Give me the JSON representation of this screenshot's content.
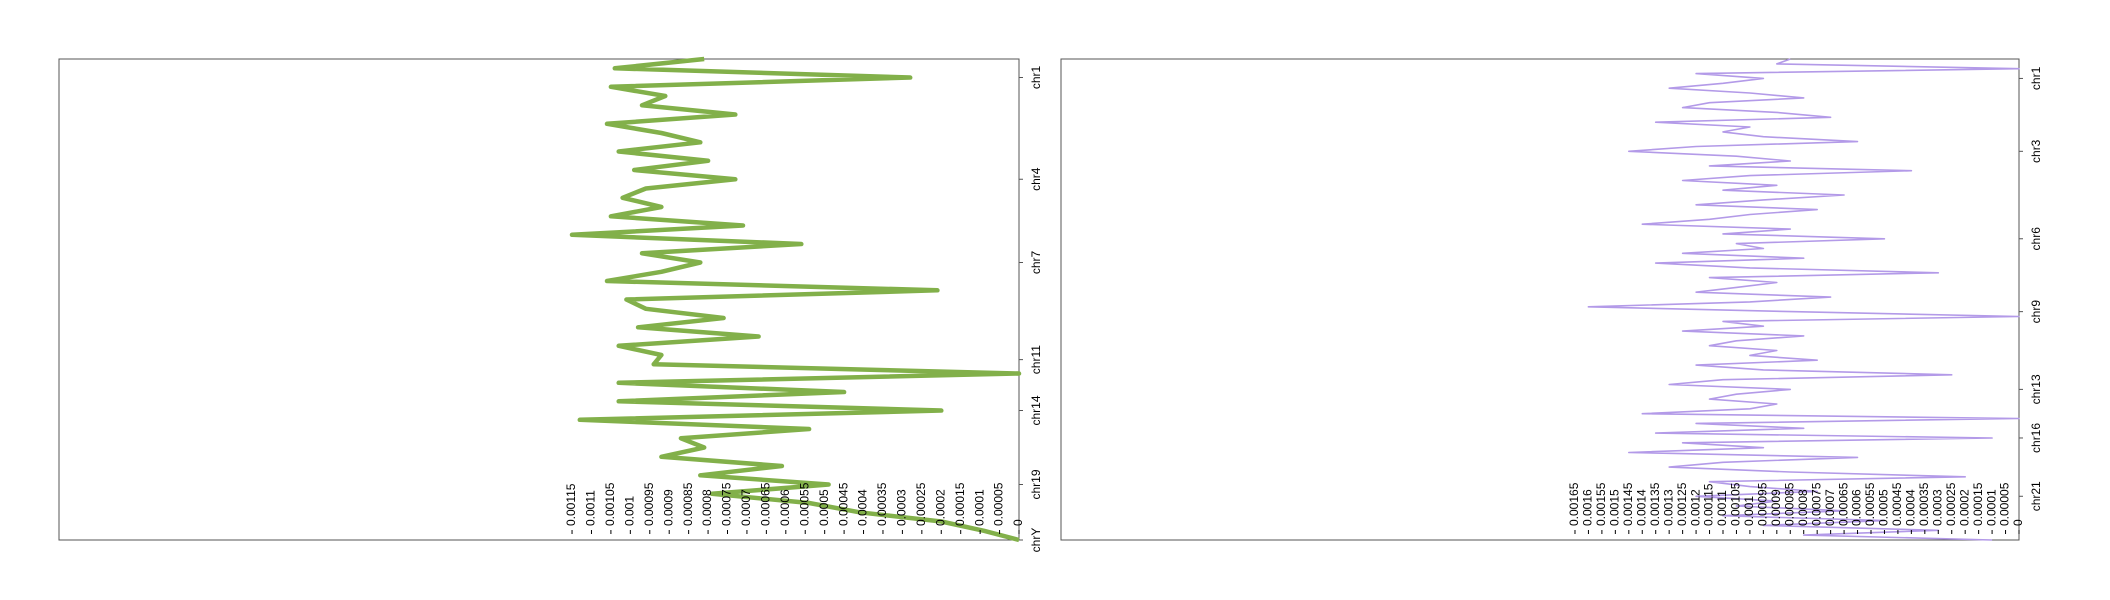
{
  "chart_data": [
    {
      "type": "line",
      "color": "#82b04a",
      "values": [
        0.00081,
        0.00104,
        0.00028,
        0.00105,
        0.00091,
        0.00097,
        0.00073,
        0.00106,
        0.00092,
        0.00082,
        0.00103,
        0.0008,
        0.00099,
        0.00073,
        0.00096,
        0.00102,
        0.00092,
        0.00105,
        0.00071,
        0.00115,
        0.00056,
        0.00097,
        0.00082,
        0.00092,
        0.00106,
        0.00021,
        0.00101,
        0.00096,
        0.00076,
        0.00098,
        0.00067,
        0.00103,
        0.00092,
        0.00094,
        0.0,
        0.00103,
        0.00045,
        0.00103,
        0.0002,
        0.00113,
        0.00054,
        0.00087,
        0.00081,
        0.00092,
        0.00061,
        0.00082,
        0.00049,
        0.00079,
        0.00054,
        0.00041,
        0.0002,
        9e-05,
        0.0
      ],
      "xlim": [
        0.00247,
        0
      ],
      "xticks": [
        0.00115,
        0.0011,
        0.00105,
        0.001,
        0.00095,
        0.0009,
        0.00085,
        0.0008,
        0.00075,
        0.0007,
        0.00065,
        0.0006,
        0.00055,
        0.0005,
        0.00045,
        0.0004,
        0.00035,
        0.0003,
        0.00025,
        0.0002,
        0.00015,
        0.0001,
        5e-05,
        0
      ],
      "ylim": [
        0,
        52
      ],
      "yticks": [
        {
          "value": 2,
          "label": "chr1"
        },
        {
          "value": 13,
          "label": "chr4"
        },
        {
          "value": 22,
          "label": "chr7"
        },
        {
          "value": 32.5,
          "label": "chr11"
        },
        {
          "value": 38,
          "label": "chr14"
        },
        {
          "value": 46,
          "label": "chr19"
        },
        {
          "value": 52,
          "label": "chrY"
        }
      ]
    },
    {
      "type": "line",
      "color": "#b39ae8",
      "values": [
        0.00085,
        0.0009,
        0.0,
        0.0012,
        0.00095,
        0.0011,
        0.0013,
        0.001,
        0.0008,
        0.00115,
        0.00125,
        0.0009,
        0.0007,
        0.00135,
        0.001,
        0.0011,
        0.00095,
        0.0006,
        0.0012,
        0.00145,
        0.00105,
        0.00085,
        0.00115,
        0.0004,
        0.001,
        0.00125,
        0.0009,
        0.0011,
        0.00065,
        0.00095,
        0.0012,
        0.00075,
        0.001,
        0.00115,
        0.0014,
        0.00085,
        0.0011,
        0.0005,
        0.00105,
        0.00095,
        0.00125,
        0.0008,
        0.00135,
        0.001,
        0.0003,
        0.00115,
        0.0009,
        0.00105,
        0.0012,
        0.0007,
        0.001,
        0.0016,
        0.00085,
        0.0,
        0.0011,
        0.00095,
        0.00125,
        0.0008,
        0.00105,
        0.00115,
        0.0009,
        0.001,
        0.00075,
        0.0012,
        0.00095,
        0.00025,
        0.0011,
        0.0013,
        0.00085,
        0.00105,
        0.00115,
        0.0009,
        0.001,
        0.0014,
        0.0,
        0.0012,
        0.0008,
        0.00135,
        0.0001,
        0.00125,
        0.00095,
        0.00145,
        0.0006,
        0.0011,
        0.0013,
        0.00085,
        0.0002,
        0.00115,
        0.001,
        0.00075,
        0.0012,
        0.0009,
        0.00105,
        0.00065,
        0.0011,
        0.0005,
        0.00095,
        0.0003,
        0.0008,
        0.0001
      ],
      "xlim": [
        0.00356,
        0
      ],
      "xticks": [
        0.00165,
        0.0016,
        0.00155,
        0.0015,
        0.00145,
        0.0014,
        0.00135,
        0.0013,
        0.00125,
        0.0012,
        0.00115,
        0.0011,
        0.00105,
        0.001,
        0.00095,
        0.0009,
        0.00085,
        0.0008,
        0.00075,
        0.0007,
        0.00065,
        0.0006,
        0.00055,
        0.0005,
        0.00045,
        0.0004,
        0.00035,
        0.0003,
        0.00025,
        0.0002,
        0.00015,
        0.0001,
        5e-05,
        0
      ],
      "ylim": [
        0,
        99
      ],
      "yticks": [
        {
          "value": 4,
          "label": "chr1"
        },
        {
          "value": 19,
          "label": "chr3"
        },
        {
          "value": 37,
          "label": "chr6"
        },
        {
          "value": 52,
          "label": "chr9"
        },
        {
          "value": 68,
          "label": "chr13"
        },
        {
          "value": 78,
          "label": "chr16"
        },
        {
          "value": 90,
          "label": "chr21"
        }
      ]
    }
  ]
}
